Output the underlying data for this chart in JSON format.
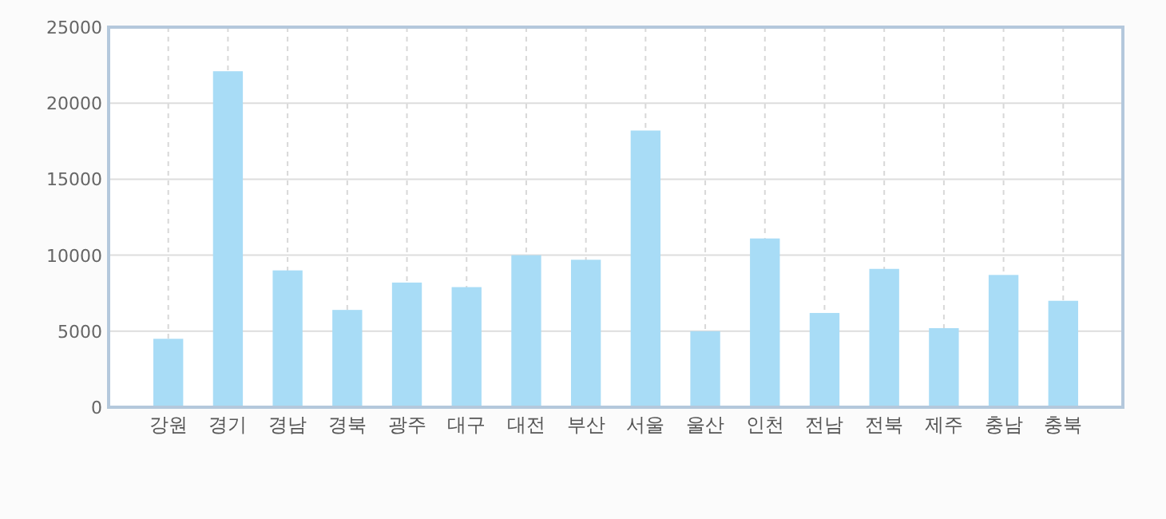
{
  "chart_data": {
    "type": "bar",
    "categories": [
      "강원",
      "경기",
      "경남",
      "경북",
      "광주",
      "대구",
      "대전",
      "부산",
      "서울",
      "울산",
      "인천",
      "전남",
      "전북",
      "제주",
      "충남",
      "충북"
    ],
    "series": [
      {
        "color": "#a8dcf6",
        "values": [
          4500,
          22100,
          9000,
          6400,
          8200,
          7900,
          10000,
          9700,
          18200,
          5000,
          11100,
          6200,
          9100,
          5200,
          8700,
          7000
        ]
      }
    ],
    "ylim": [
      0,
      25000
    ],
    "yticks": [
      0,
      5000,
      10000,
      15000,
      20000,
      25000
    ],
    "grid": true
  }
}
